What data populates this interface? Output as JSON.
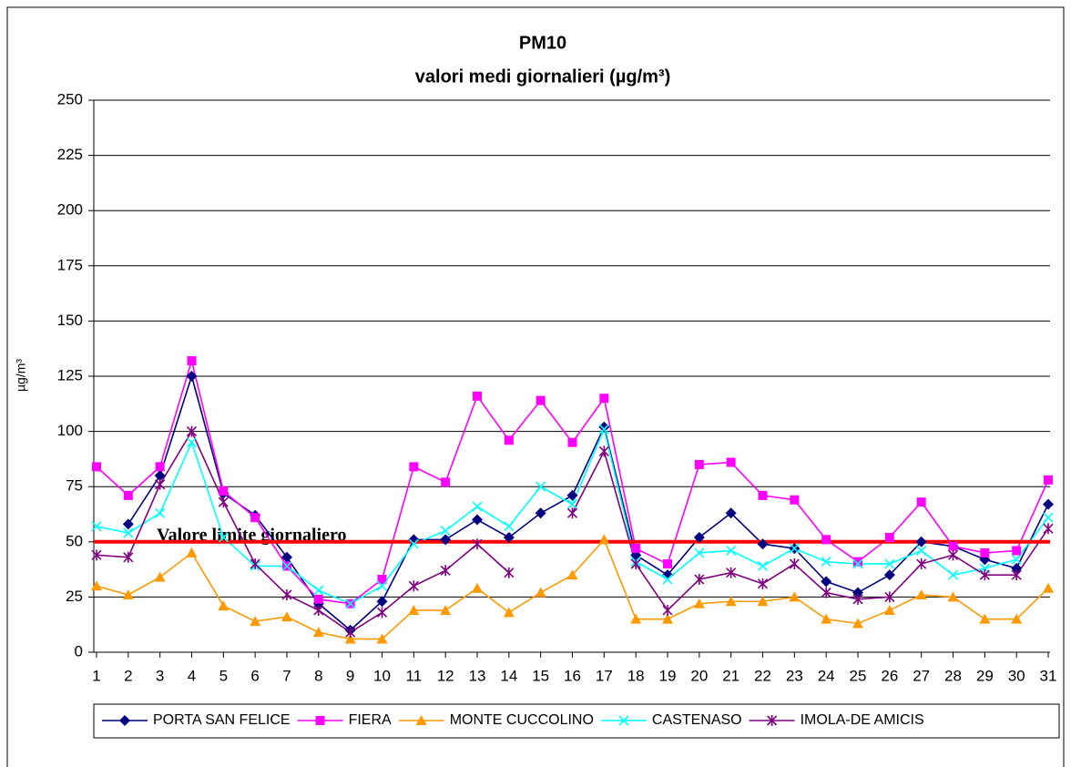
{
  "chart_data": {
    "type": "line",
    "title": "PM10",
    "subtitle": "valori medi giornalieri (µg/m³)",
    "y_label": "µg/m³",
    "categories": [
      "1",
      "2",
      "3",
      "4",
      "5",
      "6",
      "7",
      "8",
      "9",
      "10",
      "11",
      "12",
      "13",
      "14",
      "15",
      "16",
      "17",
      "18",
      "19",
      "20",
      "21",
      "22",
      "23",
      "24",
      "25",
      "26",
      "27",
      "28",
      "29",
      "30",
      "31"
    ],
    "series": [
      {
        "name": "PORTA SAN FELICE",
        "color": "#000080",
        "marker": "diamond",
        "values": [
          null,
          58,
          80,
          125,
          72,
          62,
          43,
          22,
          10,
          23,
          51,
          51,
          60,
          52,
          63,
          71,
          102,
          44,
          35,
          52,
          63,
          49,
          47,
          32,
          27,
          35,
          50,
          48,
          42,
          38,
          67
        ]
      },
      {
        "name": "FIERA",
        "color": "#ff00ff",
        "marker": "square",
        "values": [
          84,
          71,
          84,
          132,
          73,
          61,
          39,
          24,
          22,
          33,
          84,
          77,
          116,
          96,
          114,
          95,
          115,
          47,
          40,
          85,
          86,
          71,
          69,
          51,
          41,
          52,
          68,
          48,
          45,
          46,
          78
        ]
      },
      {
        "name": "MONTE CUCCOLINO",
        "color": "#ff9900",
        "marker": "triangle",
        "values": [
          30,
          26,
          34,
          45,
          21,
          14,
          16,
          9,
          6,
          6,
          19,
          19,
          29,
          18,
          27,
          35,
          51,
          15,
          15,
          22,
          23,
          23,
          25,
          15,
          13,
          19,
          26,
          25,
          15,
          15,
          29
        ]
      },
      {
        "name": "CASTENASO",
        "color": "#00ffff",
        "marker": "cross",
        "values": [
          57,
          54,
          63,
          95,
          52,
          39,
          39,
          28,
          22,
          30,
          49,
          55,
          66,
          57,
          75,
          67,
          101,
          41,
          33,
          45,
          46,
          39,
          47,
          41,
          40,
          40,
          46,
          35,
          38,
          42,
          61
        ]
      },
      {
        "name": "IMOLA-DE AMICIS",
        "color": "#800080",
        "marker": "star",
        "values": [
          44,
          43,
          76,
          100,
          68,
          40,
          26,
          19,
          9,
          18,
          30,
          37,
          49,
          36,
          null,
          63,
          91,
          40,
          19,
          33,
          36,
          31,
          40,
          27,
          24,
          25,
          40,
          44,
          35,
          35,
          56
        ]
      }
    ],
    "limit": {
      "value": 50,
      "label": "Valore limite giornaliero",
      "color": "#ff0000"
    },
    "ylim": [
      0,
      250
    ],
    "yticks": [
      0,
      25,
      50,
      75,
      100,
      125,
      150,
      175,
      200,
      225,
      250
    ],
    "grid": true,
    "legend": "bottom"
  }
}
